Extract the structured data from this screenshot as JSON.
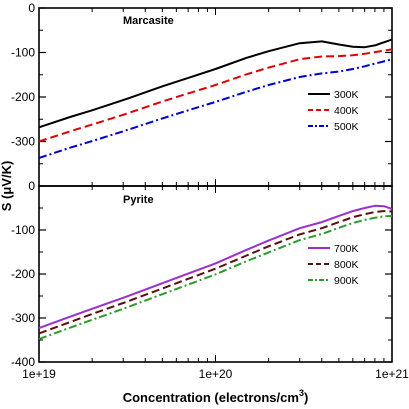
{
  "chart_data": {
    "type": "line",
    "xlabel": "Concentration (electrons/cm",
    "xlabel_sup": "3",
    "xlabel_close": ")",
    "ylabel": "S (μV/K)",
    "x_scale": "log",
    "xlim": [
      1e+19,
      1e+21
    ],
    "x_ticks": [
      "1e+19",
      "1e+20",
      "1e+21"
    ],
    "legend_position": "right",
    "grid": false,
    "panels": [
      {
        "title": "Marcasite",
        "ylim": [
          -400,
          0
        ],
        "y_ticks": [
          "0",
          "-100",
          "-200",
          "-300"
        ],
        "series": [
          {
            "name": "300K",
            "color": "#000000",
            "dash": "solid",
            "x": [
              1e+19,
              1.5e+19,
              2e+19,
              3e+19,
              5e+19,
              7e+19,
              1e+20,
              1.5e+20,
              2e+20,
              3e+20,
              4e+20,
              5e+20,
              6e+20,
              7e+20,
              8e+20,
              9e+20,
              1e+21
            ],
            "y": [
              -268,
              -245,
              -230,
              -207,
              -176,
              -157,
              -137,
              -112,
              -97,
              -79,
              -75,
              -82,
              -87,
              -88,
              -84,
              -77,
              -71
            ]
          },
          {
            "name": "400K",
            "color": "#e00000",
            "dash": "dashed",
            "x": [
              1e+19,
              1.5e+19,
              2e+19,
              3e+19,
              5e+19,
              7e+19,
              1e+20,
              1.5e+20,
              2e+20,
              3e+20,
              4e+20,
              5e+20,
              6e+20,
              7e+20,
              8e+20,
              9e+20,
              1e+21
            ],
            "y": [
              -300,
              -277,
              -262,
              -240,
              -210,
              -192,
              -173,
              -149,
              -134,
              -115,
              -109,
              -108,
              -106,
              -103,
              -99,
              -96,
              -93
            ]
          },
          {
            "name": "500K",
            "color": "#0000d0",
            "dash": "dashdot",
            "x": [
              1e+19,
              1.5e+19,
              2e+19,
              3e+19,
              5e+19,
              7e+19,
              1e+20,
              1.5e+20,
              2e+20,
              3e+20,
              4e+20,
              5e+20,
              6e+20,
              7e+20,
              8e+20,
              9e+20,
              1e+21
            ],
            "y": [
              -337,
              -314,
              -299,
              -277,
              -248,
              -230,
              -211,
              -188,
              -173,
              -155,
              -147,
              -143,
              -137,
              -131,
              -125,
              -120,
              -115
            ]
          }
        ]
      },
      {
        "title": "Pyrite",
        "ylim": [
          -400,
          0
        ],
        "y_ticks": [
          "0",
          "-100",
          "-200",
          "-300",
          "-400"
        ],
        "series": [
          {
            "name": "700K",
            "color": "#9a2fd0",
            "dash": "solid",
            "x": [
              1e+19,
              1.5e+19,
              2e+19,
              3e+19,
              5e+19,
              7e+19,
              1e+20,
              1.5e+20,
              2e+20,
              3e+20,
              4e+20,
              5e+20,
              6e+20,
              7e+20,
              8e+20,
              9e+20,
              1e+21
            ],
            "y": [
              -323,
              -297,
              -279,
              -254,
              -221,
              -199,
              -176,
              -145,
              -124,
              -96,
              -82,
              -68,
              -57,
              -50,
              -45,
              -46,
              -52
            ]
          },
          {
            "name": "800K",
            "color": "#5a0e0e",
            "dash": "dashed",
            "x": [
              1e+19,
              1.5e+19,
              2e+19,
              3e+19,
              5e+19,
              7e+19,
              1e+20,
              1.5e+20,
              2e+20,
              3e+20,
              4e+20,
              5e+20,
              6e+20,
              7e+20,
              8e+20,
              9e+20,
              1e+21
            ],
            "y": [
              -335,
              -309,
              -291,
              -266,
              -233,
              -211,
              -188,
              -158,
              -137,
              -110,
              -96,
              -82,
              -71,
              -64,
              -59,
              -57,
              -58
            ]
          },
          {
            "name": "900K",
            "color": "#2c9a2c",
            "dash": "dashdot",
            "x": [
              1e+19,
              1.5e+19,
              2e+19,
              3e+19,
              5e+19,
              7e+19,
              1e+20,
              1.5e+20,
              2e+20,
              3e+20,
              4e+20,
              5e+20,
              6e+20,
              7e+20,
              8e+20,
              9e+20,
              1e+21
            ],
            "y": [
              -348,
              -322,
              -304,
              -279,
              -246,
              -224,
              -201,
              -171,
              -151,
              -123,
              -109,
              -95,
              -84,
              -77,
              -72,
              -69,
              -68
            ]
          }
        ]
      }
    ]
  }
}
